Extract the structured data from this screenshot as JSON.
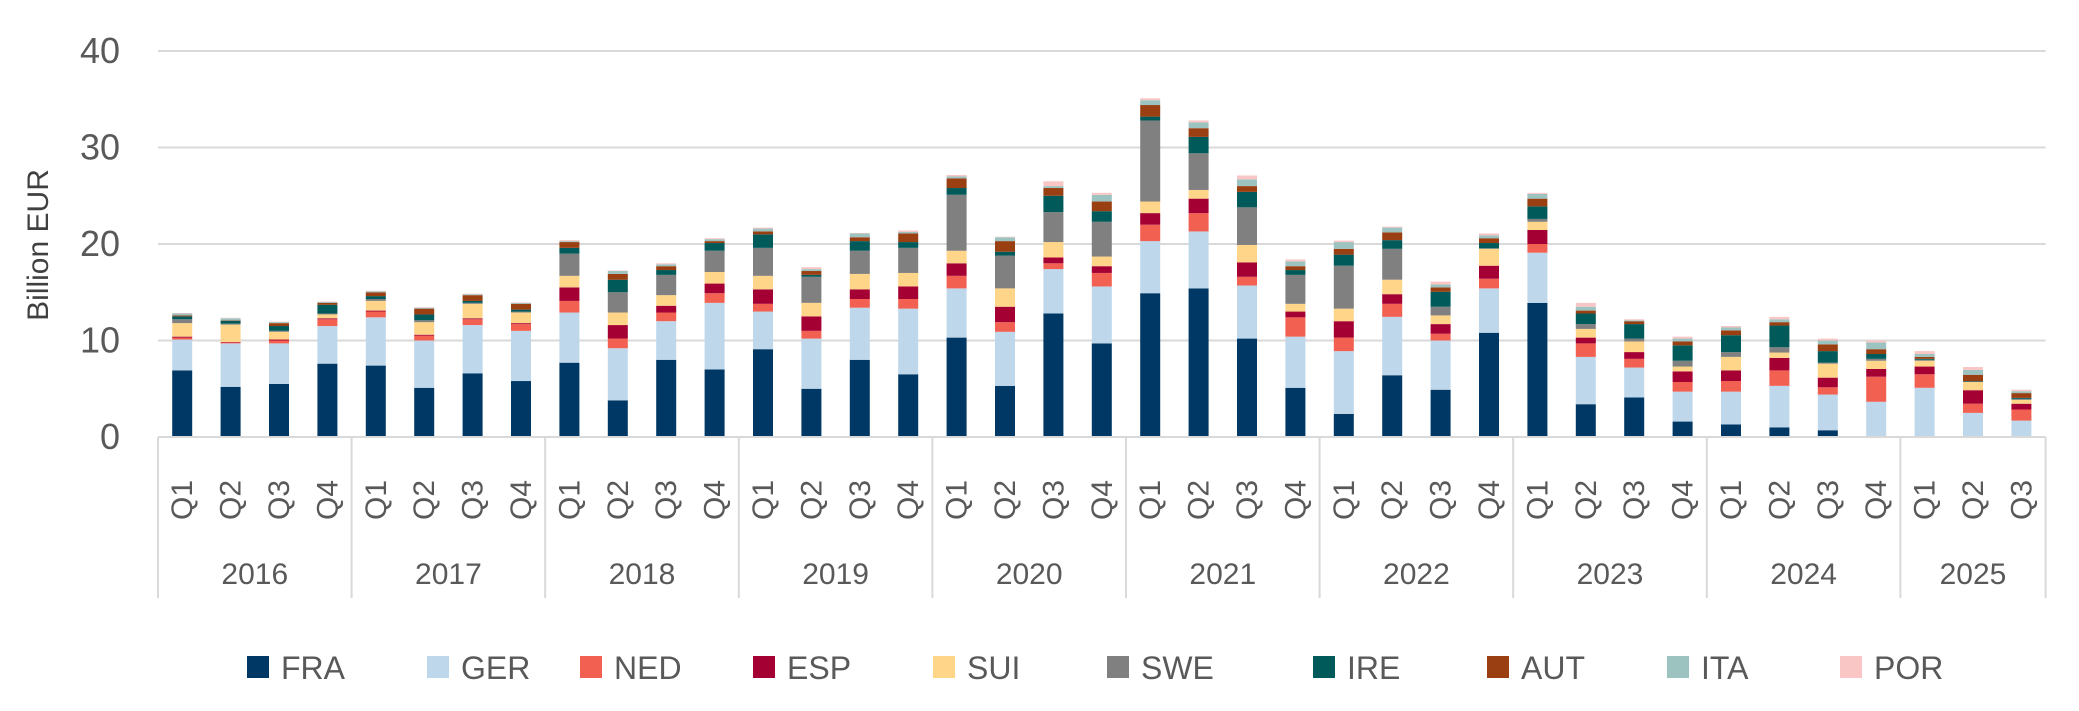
{
  "chart_data": {
    "type": "bar",
    "stacked": true,
    "title": "",
    "xlabel": "",
    "ylabel": "Billion EUR",
    "ylim": [
      0,
      40
    ],
    "yticks": [
      0,
      10,
      20,
      30,
      40
    ],
    "grid": true,
    "legend_position": "bottom",
    "years": [
      "2016",
      "2017",
      "2018",
      "2019",
      "2020",
      "2021",
      "2022",
      "2023",
      "2024",
      "2025"
    ],
    "quarters_per_year": [
      4,
      4,
      4,
      4,
      4,
      4,
      4,
      4,
      4,
      3
    ],
    "quarter_labels": [
      "Q1",
      "Q2",
      "Q3",
      "Q4"
    ],
    "series": [
      {
        "name": "FRA",
        "color": "#003865",
        "values": [
          6.9,
          5.2,
          5.5,
          7.6,
          7.4,
          5.1,
          6.6,
          5.8,
          7.7,
          3.8,
          8.0,
          7.0,
          9.1,
          5.0,
          8.0,
          6.5,
          10.3,
          5.3,
          12.8,
          9.7,
          14.9,
          15.4,
          10.2,
          5.1,
          2.4,
          6.4,
          4.9,
          10.8,
          13.9,
          3.4,
          4.1,
          1.6,
          1.3,
          1.0,
          0.7,
          0,
          0.1,
          0,
          0.1
        ]
      },
      {
        "name": "GER",
        "color": "#BFD7EA",
        "values": [
          3.2,
          4.5,
          4.2,
          3.9,
          5.0,
          4.9,
          5.0,
          5.2,
          5.2,
          5.4,
          4.0,
          6.9,
          3.9,
          5.2,
          5.4,
          6.8,
          5.1,
          5.6,
          4.6,
          5.9,
          5.4,
          5.9,
          5.5,
          5.3,
          6.5,
          6.05,
          5.1,
          4.6,
          5.2,
          4.9,
          3.1,
          3.1,
          3.4,
          4.3,
          3.7,
          3.65,
          5.0,
          2.5,
          1.6
        ]
      },
      {
        "name": "NED",
        "color": "#F26052",
        "values": [
          0.2,
          0.1,
          0.3,
          0.7,
          0.6,
          0.5,
          0.6,
          0.7,
          1.2,
          1.0,
          0.9,
          1.0,
          0.8,
          0.8,
          0.9,
          1.0,
          1.3,
          1.0,
          0.6,
          1.4,
          1.7,
          1.9,
          0.9,
          2.0,
          1.4,
          1.35,
          0.7,
          1.0,
          0.9,
          1.4,
          0.9,
          1.0,
          1.1,
          1.6,
          0.75,
          2.6,
          1.4,
          0.95,
          1.15
        ]
      },
      {
        "name": "ESP",
        "color": "#A50034",
        "values": [
          0.1,
          0.05,
          0.1,
          0.1,
          0.1,
          0.1,
          0.1,
          0.1,
          1.4,
          1.4,
          0.7,
          1.0,
          1.5,
          1.5,
          1.0,
          1.3,
          1.3,
          1.6,
          0.6,
          0.7,
          1.2,
          1.5,
          1.5,
          0.6,
          1.7,
          1.0,
          1.0,
          1.35,
          1.45,
          0.6,
          0.7,
          1.1,
          1.1,
          1.3,
          1.0,
          0.8,
          0.8,
          1.4,
          0.6
        ]
      },
      {
        "name": "SUI",
        "color": "#FFD58A",
        "values": [
          1.4,
          1.8,
          0.8,
          0.4,
          1.0,
          1.3,
          1.5,
          1.1,
          1.2,
          1.3,
          1.1,
          1.2,
          1.4,
          1.4,
          1.6,
          1.4,
          1.3,
          1.9,
          1.6,
          1.0,
          1.2,
          0.9,
          1.8,
          0.8,
          1.3,
          1.5,
          0.9,
          1.75,
          0.85,
          0.9,
          1.1,
          0.5,
          1.4,
          0.55,
          1.45,
          0.85,
          0.6,
          0.85,
          0.4
        ]
      },
      {
        "name": "SWE",
        "color": "#808080",
        "values": [
          0.4,
          0.1,
          0.1,
          0.1,
          0.2,
          0.2,
          0.1,
          0.1,
          2.3,
          2.1,
          2.1,
          2.2,
          2.9,
          2.7,
          2.4,
          2.6,
          5.8,
          3.4,
          3.1,
          3.6,
          8.4,
          3.8,
          3.9,
          3.0,
          4.45,
          3.2,
          0.9,
          0.05,
          0.3,
          0.5,
          0.3,
          0.6,
          0.5,
          0.55,
          0.1,
          0.2,
          0.1,
          0.05,
          0.1
        ]
      },
      {
        "name": "IRE",
        "color": "#005A5A",
        "values": [
          0.3,
          0.3,
          0.5,
          0.9,
          0.3,
          0.6,
          0.2,
          0.2,
          0.6,
          1.3,
          0.5,
          0.8,
          1.4,
          0.2,
          1.0,
          0.6,
          0.7,
          0.4,
          1.7,
          1.1,
          0.4,
          1.7,
          1.6,
          0.5,
          1.15,
          0.9,
          1.55,
          0.55,
          1.3,
          1.1,
          1.5,
          1.6,
          1.75,
          2.25,
          1.2,
          0.5,
          0.1,
          0.05,
          0.1
        ]
      },
      {
        "name": "AUT",
        "color": "#9A3F12",
        "values": [
          0.1,
          0.05,
          0.3,
          0.2,
          0.4,
          0.6,
          0.6,
          0.6,
          0.6,
          0.6,
          0.4,
          0.2,
          0.3,
          0.4,
          0.4,
          0.9,
          1.0,
          1.1,
          0.8,
          1.0,
          1.2,
          0.9,
          0.6,
          0.4,
          0.6,
          0.8,
          0.45,
          0.5,
          0.8,
          0.3,
          0.3,
          0.4,
          0.5,
          0.35,
          0.7,
          0.5,
          0.2,
          0.65,
          0.5
        ]
      },
      {
        "name": "ITA",
        "color": "#9DC3C0",
        "values": [
          0.2,
          0.2,
          0.1,
          0.1,
          0.1,
          0.1,
          0.1,
          0.1,
          0.1,
          0.3,
          0.2,
          0.2,
          0.3,
          0.2,
          0.4,
          0.15,
          0.2,
          0.4,
          0.2,
          0.7,
          0.5,
          0.6,
          0.7,
          0.5,
          0.7,
          0.5,
          0.3,
          0.3,
          0.5,
          0.4,
          0.1,
          0.3,
          0.3,
          0.3,
          0.4,
          0.7,
          0.3,
          0.5,
          0.2
        ]
      },
      {
        "name": "POR",
        "color": "#F9C5C5",
        "values": [
          0.05,
          0.05,
          0.05,
          0.05,
          0.05,
          0.05,
          0.05,
          0.05,
          0.1,
          0.05,
          0.1,
          0.1,
          0.1,
          0.2,
          0.05,
          0.15,
          0.15,
          0.05,
          0.5,
          0.2,
          0.2,
          0.2,
          0.4,
          0.2,
          0.15,
          0.1,
          0.3,
          0.2,
          0.1,
          0.4,
          0.1,
          0.2,
          0.15,
          0.25,
          0.2,
          0.2,
          0.3,
          0.3,
          0.15
        ]
      }
    ]
  }
}
